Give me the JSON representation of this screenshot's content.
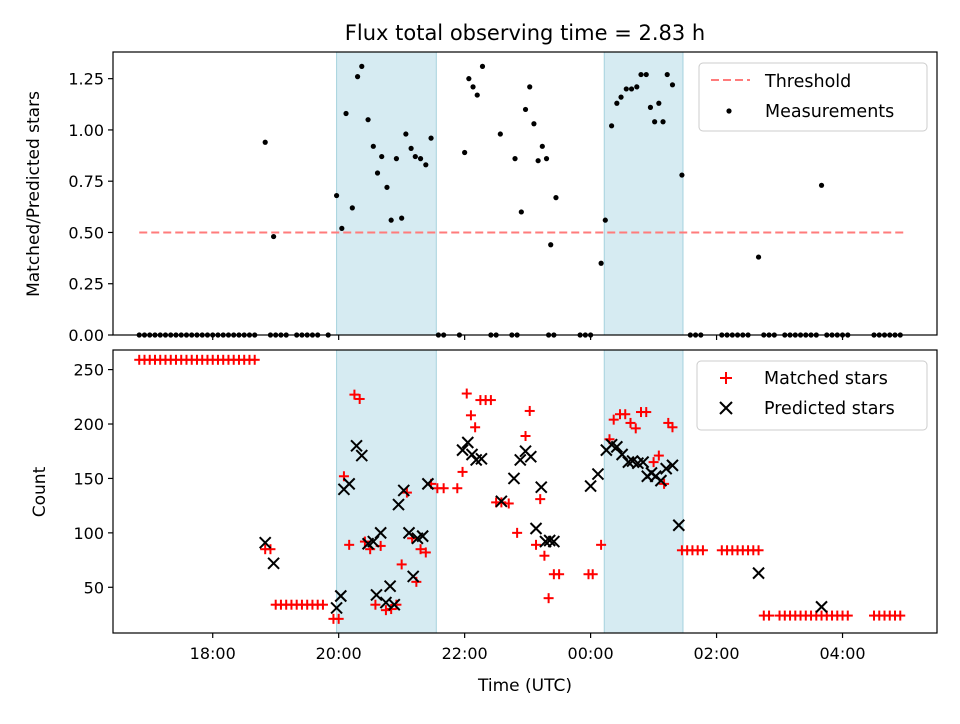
{
  "chart_data": {
    "type": "scatter",
    "title": "Flux total observing time = 2.83 h",
    "xlabel": "Time (UTC)",
    "x_format": "HH:MM UTC",
    "x_range": [
      "16:25",
      "05:30"
    ],
    "x_ticks": [
      "18:00",
      "20:00",
      "22:00",
      "00:00",
      "02:00",
      "04:00"
    ],
    "observing_windows": [
      [
        "19:58",
        "21:33"
      ],
      [
        "00:13",
        "01:28"
      ]
    ],
    "top": {
      "ylabel": "Matched/Predicted stars",
      "ylim": [
        0,
        1.38
      ],
      "yticks": [
        "0.00",
        "0.25",
        "0.50",
        "0.75",
        "1.00",
        "1.25"
      ],
      "legend": [
        "Threshold",
        "Measurements"
      ],
      "threshold": {
        "value": 0.5,
        "from": "16:50",
        "to": "05:00",
        "color": "#ff7b7b"
      },
      "measurements": [
        [
          "16:50",
          0
        ],
        [
          "16:55",
          0
        ],
        [
          "17:00",
          0
        ],
        [
          "17:05",
          0
        ],
        [
          "17:10",
          0
        ],
        [
          "17:15",
          0
        ],
        [
          "17:20",
          0
        ],
        [
          "17:25",
          0
        ],
        [
          "17:30",
          0
        ],
        [
          "17:35",
          0
        ],
        [
          "17:40",
          0
        ],
        [
          "17:45",
          0
        ],
        [
          "17:50",
          0
        ],
        [
          "17:55",
          0
        ],
        [
          "18:00",
          0
        ],
        [
          "18:05",
          0
        ],
        [
          "18:10",
          0
        ],
        [
          "18:15",
          0
        ],
        [
          "18:20",
          0
        ],
        [
          "18:25",
          0
        ],
        [
          "18:30",
          0
        ],
        [
          "18:35",
          0
        ],
        [
          "18:40",
          0
        ],
        [
          "18:50",
          0.94
        ],
        [
          "18:58",
          0.48
        ],
        [
          "18:55",
          0
        ],
        [
          "19:00",
          0
        ],
        [
          "19:05",
          0
        ],
        [
          "19:10",
          0
        ],
        [
          "19:20",
          0
        ],
        [
          "19:25",
          0
        ],
        [
          "19:30",
          0
        ],
        [
          "19:35",
          0
        ],
        [
          "19:40",
          0
        ],
        [
          "19:50",
          0
        ],
        [
          "19:58",
          0.68
        ],
        [
          "20:03",
          0.52
        ],
        [
          "20:07",
          1.08
        ],
        [
          "20:13",
          0.62
        ],
        [
          "20:18",
          1.26
        ],
        [
          "20:22",
          1.31
        ],
        [
          "20:28",
          1.05
        ],
        [
          "20:33",
          0.92
        ],
        [
          "20:37",
          0.79
        ],
        [
          "20:41",
          0.87
        ],
        [
          "20:46",
          0.72
        ],
        [
          "20:50",
          0.56
        ],
        [
          "20:55",
          0.86
        ],
        [
          "21:00",
          0.57
        ],
        [
          "21:04",
          0.98
        ],
        [
          "21:09",
          0.91
        ],
        [
          "21:13",
          0.87
        ],
        [
          "21:18",
          0.86
        ],
        [
          "21:23",
          0.83
        ],
        [
          "21:28",
          0.96
        ],
        [
          "21:35",
          0
        ],
        [
          "21:40",
          0
        ],
        [
          "21:55",
          0
        ],
        [
          "22:25",
          0
        ],
        [
          "22:30",
          0
        ],
        [
          "22:45",
          0
        ],
        [
          "22:50",
          0
        ],
        [
          "23:20",
          0
        ],
        [
          "23:25",
          0
        ],
        [
          "23:50",
          0
        ],
        [
          "23:55",
          0
        ],
        [
          "24:00",
          0
        ],
        [
          "22:00",
          0.89
        ],
        [
          "22:04",
          1.25
        ],
        [
          "22:08",
          1.21
        ],
        [
          "22:12",
          1.17
        ],
        [
          "22:17",
          1.31
        ],
        [
          "22:34",
          0.98
        ],
        [
          "22:48",
          0.86
        ],
        [
          "22:54",
          0.6
        ],
        [
          "22:58",
          1.1
        ],
        [
          "23:02",
          1.21
        ],
        [
          "23:06",
          1.03
        ],
        [
          "23:10",
          0.85
        ],
        [
          "23:14",
          0.92
        ],
        [
          "23:18",
          0.86
        ],
        [
          "23:22",
          0.44
        ],
        [
          "23:27",
          0.67
        ],
        [
          "24:10",
          0.35
        ],
        [
          "24:14",
          0.56
        ],
        [
          "24:20",
          1.02
        ],
        [
          "24:25",
          1.13
        ],
        [
          "24:29",
          1.16
        ],
        [
          "24:34",
          1.2
        ],
        [
          "24:39",
          1.2
        ],
        [
          "24:44",
          1.21
        ],
        [
          "24:48",
          1.27
        ],
        [
          "24:53",
          1.27
        ],
        [
          "24:57",
          1.11
        ],
        [
          "25:01",
          1.04
        ],
        [
          "25:05",
          1.13
        ],
        [
          "25:09",
          1.04
        ],
        [
          "25:13",
          1.27
        ],
        [
          "25:18",
          1.22
        ],
        [
          "25:27",
          0.78
        ],
        [
          "25:35",
          0
        ],
        [
          "25:40",
          0
        ],
        [
          "25:45",
          0
        ],
        [
          "26:05",
          0
        ],
        [
          "26:10",
          0
        ],
        [
          "26:15",
          0
        ],
        [
          "26:20",
          0
        ],
        [
          "26:25",
          0
        ],
        [
          "26:30",
          0
        ],
        [
          "26:40",
          0.38
        ],
        [
          "26:45",
          0
        ],
        [
          "26:50",
          0
        ],
        [
          "26:55",
          0
        ],
        [
          "27:05",
          0
        ],
        [
          "27:10",
          0
        ],
        [
          "27:15",
          0
        ],
        [
          "27:20",
          0
        ],
        [
          "27:25",
          0
        ],
        [
          "27:30",
          0
        ],
        [
          "27:35",
          0
        ],
        [
          "27:40",
          0.73
        ],
        [
          "27:45",
          0
        ],
        [
          "27:50",
          0
        ],
        [
          "27:55",
          0
        ],
        [
          "28:00",
          0
        ],
        [
          "28:05",
          0
        ],
        [
          "28:30",
          0
        ],
        [
          "28:35",
          0
        ],
        [
          "28:40",
          0
        ],
        [
          "28:45",
          0
        ],
        [
          "28:50",
          0
        ],
        [
          "28:55",
          0
        ]
      ]
    },
    "bottom": {
      "ylabel": "Count",
      "ylim": [
        8,
        268
      ],
      "yticks": [
        "50",
        "100",
        "150",
        "200",
        "250"
      ],
      "legend": [
        "Matched stars",
        "Predicted stars"
      ],
      "matched": [
        [
          "16:50",
          259
        ],
        [
          "16:55",
          259
        ],
        [
          "17:00",
          259
        ],
        [
          "17:05",
          259
        ],
        [
          "17:10",
          259
        ],
        [
          "17:15",
          259
        ],
        [
          "17:20",
          259
        ],
        [
          "17:25",
          259
        ],
        [
          "17:30",
          259
        ],
        [
          "17:35",
          259
        ],
        [
          "17:40",
          259
        ],
        [
          "17:45",
          259
        ],
        [
          "17:50",
          259
        ],
        [
          "17:55",
          259
        ],
        [
          "18:00",
          259
        ],
        [
          "18:05",
          259
        ],
        [
          "18:10",
          259
        ],
        [
          "18:15",
          259
        ],
        [
          "18:20",
          259
        ],
        [
          "18:25",
          259
        ],
        [
          "18:30",
          259
        ],
        [
          "18:35",
          259
        ],
        [
          "18:40",
          259
        ],
        [
          "18:50",
          85
        ],
        [
          "18:55",
          85
        ],
        [
          "19:00",
          34
        ],
        [
          "19:05",
          34
        ],
        [
          "19:10",
          34
        ],
        [
          "19:15",
          34
        ],
        [
          "19:20",
          34
        ],
        [
          "19:25",
          34
        ],
        [
          "19:30",
          34
        ],
        [
          "19:35",
          34
        ],
        [
          "19:40",
          34
        ],
        [
          "19:45",
          34
        ],
        [
          "19:55",
          21
        ],
        [
          "20:00",
          21
        ],
        [
          "20:05",
          152
        ],
        [
          "20:10",
          89
        ],
        [
          "20:15",
          227
        ],
        [
          "20:20",
          223
        ],
        [
          "20:25",
          92
        ],
        [
          "20:30",
          85
        ],
        [
          "20:35",
          34
        ],
        [
          "20:40",
          88
        ],
        [
          "20:45",
          29
        ],
        [
          "20:50",
          30
        ],
        [
          "20:55",
          34
        ],
        [
          "21:00",
          71
        ],
        [
          "21:05",
          137
        ],
        [
          "21:10",
          95
        ],
        [
          "21:14",
          55
        ],
        [
          "21:18",
          85
        ],
        [
          "21:23",
          82
        ],
        [
          "21:28",
          145
        ],
        [
          "21:34",
          141
        ],
        [
          "21:40",
          141
        ],
        [
          "21:53",
          141
        ],
        [
          "21:58",
          156
        ],
        [
          "22:02",
          228
        ],
        [
          "22:06",
          208
        ],
        [
          "22:10",
          197
        ],
        [
          "22:15",
          222
        ],
        [
          "22:20",
          222
        ],
        [
          "22:25",
          222
        ],
        [
          "22:30",
          128
        ],
        [
          "22:35",
          128
        ],
        [
          "22:42",
          127
        ],
        [
          "22:50",
          100
        ],
        [
          "22:58",
          189
        ],
        [
          "23:02",
          212
        ],
        [
          "23:08",
          89
        ],
        [
          "23:12",
          131
        ],
        [
          "23:16",
          79
        ],
        [
          "23:20",
          40
        ],
        [
          "23:25",
          62
        ],
        [
          "23:30",
          62
        ],
        [
          "23:58",
          62
        ],
        [
          "24:02",
          62
        ],
        [
          "24:10",
          89
        ],
        [
          "24:18",
          186
        ],
        [
          "24:22",
          204
        ],
        [
          "24:28",
          209
        ],
        [
          "24:33",
          209
        ],
        [
          "24:38",
          201
        ],
        [
          "24:43",
          196
        ],
        [
          "24:48",
          211
        ],
        [
          "24:53",
          211
        ],
        [
          "25:00",
          165
        ],
        [
          "25:05",
          171
        ],
        [
          "25:10",
          145
        ],
        [
          "25:14",
          201
        ],
        [
          "25:18",
          197
        ],
        [
          "25:27",
          84
        ],
        [
          "25:32",
          84
        ],
        [
          "25:37",
          84
        ],
        [
          "25:42",
          84
        ],
        [
          "25:47",
          84
        ],
        [
          "26:05",
          84
        ],
        [
          "26:10",
          84
        ],
        [
          "26:15",
          84
        ],
        [
          "26:20",
          84
        ],
        [
          "26:25",
          84
        ],
        [
          "26:30",
          84
        ],
        [
          "26:35",
          84
        ],
        [
          "26:40",
          84
        ],
        [
          "26:45",
          24
        ],
        [
          "26:50",
          24
        ],
        [
          "27:00",
          24
        ],
        [
          "27:05",
          24
        ],
        [
          "27:10",
          24
        ],
        [
          "27:15",
          24
        ],
        [
          "27:20",
          24
        ],
        [
          "27:25",
          24
        ],
        [
          "27:30",
          24
        ],
        [
          "27:35",
          24
        ],
        [
          "27:40",
          24
        ],
        [
          "27:45",
          24
        ],
        [
          "27:50",
          24
        ],
        [
          "27:55",
          24
        ],
        [
          "28:00",
          24
        ],
        [
          "28:05",
          24
        ],
        [
          "28:30",
          24
        ],
        [
          "28:35",
          24
        ],
        [
          "28:40",
          24
        ],
        [
          "28:45",
          24
        ],
        [
          "28:50",
          24
        ],
        [
          "28:55",
          24
        ]
      ],
      "predicted": [
        [
          "18:50",
          91
        ],
        [
          "18:58",
          72
        ],
        [
          "19:58",
          31
        ],
        [
          "20:02",
          42
        ],
        [
          "20:05",
          140
        ],
        [
          "20:10",
          145
        ],
        [
          "20:17",
          180
        ],
        [
          "20:22",
          171
        ],
        [
          "20:28",
          90
        ],
        [
          "20:33",
          92
        ],
        [
          "20:36",
          43
        ],
        [
          "20:40",
          100
        ],
        [
          "20:45",
          36
        ],
        [
          "20:49",
          51
        ],
        [
          "20:53",
          34
        ],
        [
          "20:57",
          126
        ],
        [
          "21:02",
          139
        ],
        [
          "21:07",
          100
        ],
        [
          "21:11",
          60
        ],
        [
          "21:15",
          95
        ],
        [
          "21:20",
          97
        ],
        [
          "21:25",
          145
        ],
        [
          "21:58",
          176
        ],
        [
          "22:03",
          183
        ],
        [
          "22:07",
          172
        ],
        [
          "22:11",
          167
        ],
        [
          "22:16",
          168
        ],
        [
          "22:35",
          129
        ],
        [
          "22:47",
          150
        ],
        [
          "22:53",
          167
        ],
        [
          "22:58",
          175
        ],
        [
          "23:03",
          170
        ],
        [
          "23:08",
          104
        ],
        [
          "23:13",
          142
        ],
        [
          "23:17",
          92
        ],
        [
          "23:21",
          93
        ],
        [
          "23:25",
          92
        ],
        [
          "24:00",
          143
        ],
        [
          "24:07",
          154
        ],
        [
          "24:15",
          176
        ],
        [
          "24:20",
          181
        ],
        [
          "24:25",
          179
        ],
        [
          "24:30",
          172
        ],
        [
          "24:36",
          165
        ],
        [
          "24:40",
          166
        ],
        [
          "24:45",
          164
        ],
        [
          "24:50",
          165
        ],
        [
          "24:54",
          152
        ],
        [
          "24:58",
          155
        ],
        [
          "25:02",
          152
        ],
        [
          "25:07",
          148
        ],
        [
          "25:12",
          159
        ],
        [
          "25:18",
          162
        ],
        [
          "25:24",
          107
        ],
        [
          "26:40",
          63
        ],
        [
          "27:40",
          32
        ]
      ]
    }
  }
}
